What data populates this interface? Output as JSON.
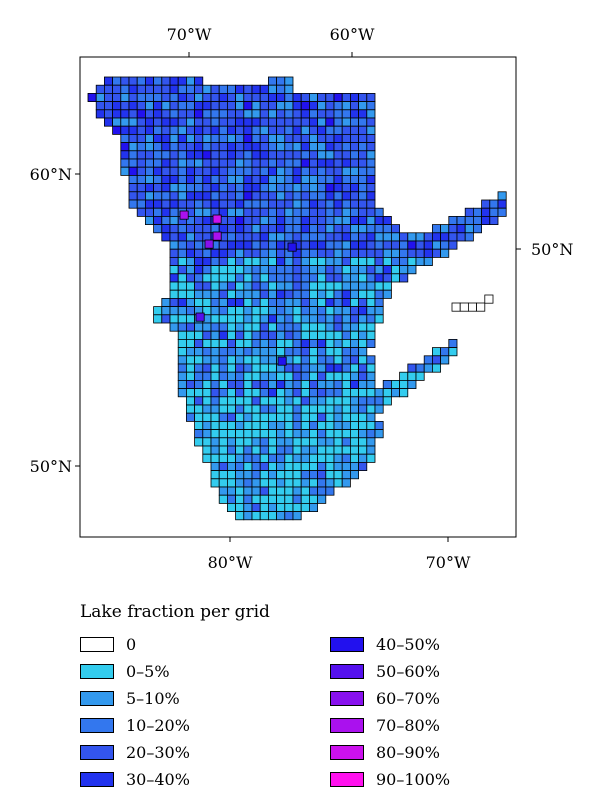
{
  "axes": {
    "top_ticks": [
      "70°W",
      "60°W"
    ],
    "bottom_ticks": [
      "80°W",
      "70°W"
    ],
    "left_ticks": [
      "60°N",
      "50°N"
    ],
    "right_ticks": [
      "50°N"
    ]
  },
  "legend": {
    "title": "Lake fraction per grid",
    "items": [
      {
        "label": "0",
        "color": "#ffffff"
      },
      {
        "label": "0–5%",
        "color": "#33ccee"
      },
      {
        "label": "5–10%",
        "color": "#3399ee"
      },
      {
        "label": "10–20%",
        "color": "#3377ee"
      },
      {
        "label": "20–30%",
        "color": "#3355ee"
      },
      {
        "label": "30–40%",
        "color": "#2233ee"
      },
      {
        "label": "40–50%",
        "color": "#2211ee"
      },
      {
        "label": "50–60%",
        "color": "#5511ee"
      },
      {
        "label": "60–70%",
        "color": "#8811ee"
      },
      {
        "label": "70–80%",
        "color": "#aa11ee"
      },
      {
        "label": "80–90%",
        "color": "#cc11ee"
      },
      {
        "label": "90–100%",
        "color": "#ff11ee"
      }
    ]
  }
}
